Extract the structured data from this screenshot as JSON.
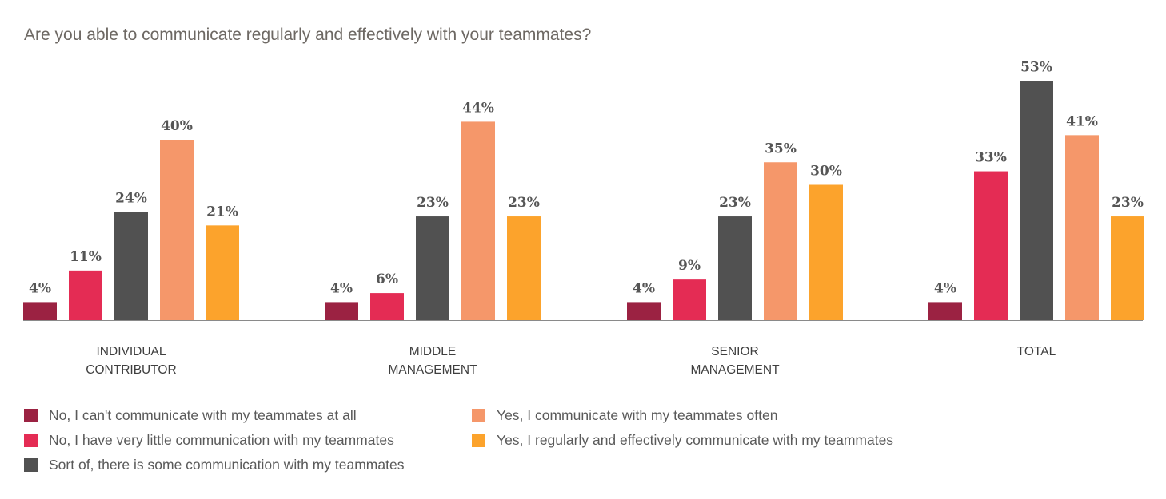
{
  "chart_data": {
    "type": "bar",
    "title": "Are you able to communicate regularly and effectively with your teammates?",
    "xlabel": "",
    "ylabel": "",
    "ylim": [
      0,
      55
    ],
    "grid": false,
    "legend_position": "bottom",
    "categories": [
      [
        "INDIVIDUAL",
        "CONTRIBUTOR"
      ],
      [
        "MIDDLE",
        "MANAGEMENT"
      ],
      [
        "SENIOR",
        "MANAGEMENT"
      ],
      [
        "TOTAL"
      ]
    ],
    "series": [
      {
        "name": "No, I can't communicate with my teammates at all",
        "color": "#9b2242",
        "values": [
          4,
          4,
          4,
          4
        ]
      },
      {
        "name": "No, I have very little communication with my teammates",
        "color": "#e42c54",
        "values": [
          11,
          6,
          9,
          33
        ]
      },
      {
        "name": "Sort of, there is some communication with my teammates",
        "color": "#515151",
        "values": [
          24,
          23,
          23,
          53
        ]
      },
      {
        "name": "Yes, I communicate with my teammates often",
        "color": "#f5976a",
        "values": [
          40,
          44,
          35,
          41
        ]
      },
      {
        "name": "Yes, I regularly and effectively communicate with my teammates",
        "color": "#fca32c",
        "values": [
          21,
          23,
          30,
          23
        ]
      }
    ],
    "value_suffix": "%"
  }
}
